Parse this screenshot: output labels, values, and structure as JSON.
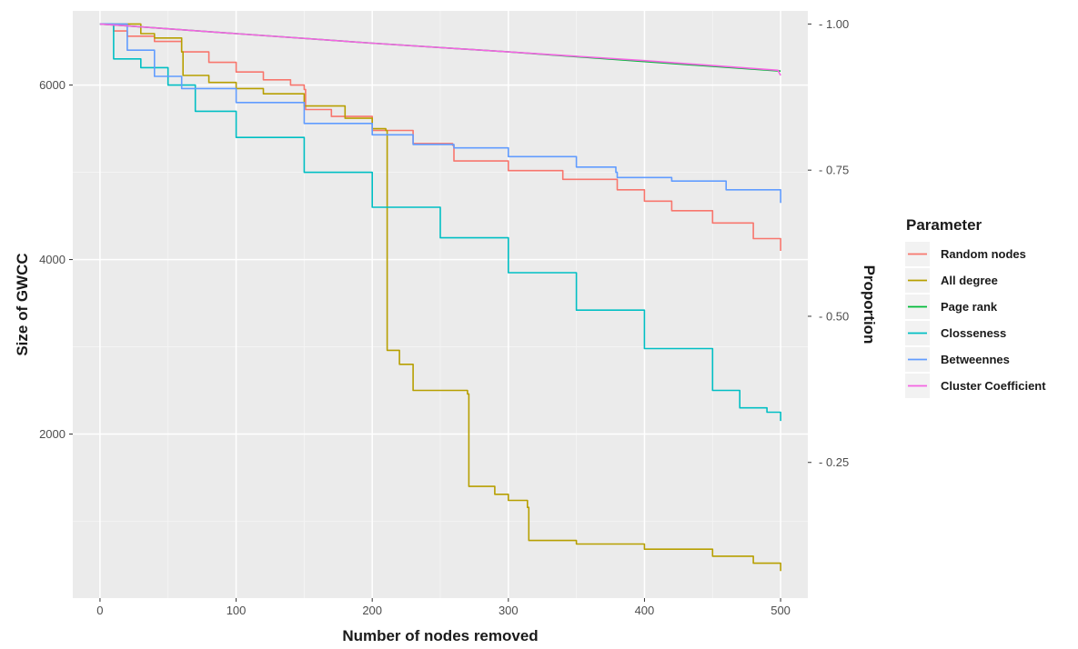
{
  "chart_data": {
    "type": "line",
    "xlabel": "Number of nodes removed",
    "ylabel": "Size of GWCC",
    "y2label": "Proportion",
    "xlim": [
      -20,
      520
    ],
    "ylim": [
      120,
      6850
    ],
    "y2_proportion_max": 6700,
    "x_ticks": [
      0,
      100,
      200,
      300,
      400,
      500
    ],
    "y_ticks": [
      2000,
      4000,
      6000
    ],
    "y2_ticks": [
      0.25,
      0.5,
      0.75,
      1.0
    ],
    "y2_tick_labels": [
      "0.25",
      "0.50",
      "0.75",
      "1.00"
    ],
    "grid": true,
    "legend": {
      "title": "Parameter",
      "position": "right"
    },
    "series": [
      {
        "name": "Random nodes",
        "color": "#F8766D",
        "step": true,
        "points": [
          [
            0,
            6700
          ],
          [
            10,
            6620
          ],
          [
            20,
            6560
          ],
          [
            40,
            6500
          ],
          [
            60,
            6380
          ],
          [
            80,
            6260
          ],
          [
            100,
            6150
          ],
          [
            120,
            6060
          ],
          [
            140,
            6000
          ],
          [
            150,
            5950
          ],
          [
            151,
            5720
          ],
          [
            170,
            5640
          ],
          [
            200,
            5480
          ],
          [
            230,
            5330
          ],
          [
            259,
            5310
          ],
          [
            260,
            5130
          ],
          [
            300,
            5020
          ],
          [
            340,
            4920
          ],
          [
            380,
            4800
          ],
          [
            400,
            4670
          ],
          [
            420,
            4560
          ],
          [
            450,
            4420
          ],
          [
            480,
            4240
          ],
          [
            500,
            4100
          ]
        ]
      },
      {
        "name": "All degree",
        "color": "#B79F00",
        "step": true,
        "points": [
          [
            0,
            6700
          ],
          [
            30,
            6590
          ],
          [
            40,
            6540
          ],
          [
            60,
            6380
          ],
          [
            61,
            6110
          ],
          [
            80,
            6030
          ],
          [
            100,
            5960
          ],
          [
            120,
            5900
          ],
          [
            150,
            5760
          ],
          [
            180,
            5620
          ],
          [
            200,
            5500
          ],
          [
            210,
            5480
          ],
          [
            211,
            2960
          ],
          [
            220,
            2800
          ],
          [
            230,
            2500
          ],
          [
            270,
            2460
          ],
          [
            271,
            1400
          ],
          [
            290,
            1310
          ],
          [
            300,
            1240
          ],
          [
            314,
            1160
          ],
          [
            315,
            780
          ],
          [
            350,
            740
          ],
          [
            400,
            680
          ],
          [
            450,
            600
          ],
          [
            480,
            520
          ],
          [
            500,
            430
          ]
        ]
      },
      {
        "name": "Page rank",
        "color": "#00BA38",
        "step": false,
        "points": [
          [
            0,
            6700
          ],
          [
            100,
            6590
          ],
          [
            200,
            6480
          ],
          [
            300,
            6380
          ],
          [
            400,
            6270
          ],
          [
            500,
            6160
          ]
        ]
      },
      {
        "name": "Closseness",
        "color": "#00BFC4",
        "step": true,
        "points": [
          [
            0,
            6700
          ],
          [
            10,
            6300
          ],
          [
            30,
            6200
          ],
          [
            50,
            6000
          ],
          [
            70,
            5700
          ],
          [
            100,
            5400
          ],
          [
            150,
            5000
          ],
          [
            200,
            4600
          ],
          [
            250,
            4250
          ],
          [
            300,
            3850
          ],
          [
            350,
            3420
          ],
          [
            400,
            2980
          ],
          [
            450,
            2500
          ],
          [
            470,
            2300
          ],
          [
            490,
            2250
          ],
          [
            500,
            2150
          ]
        ]
      },
      {
        "name": "Betweennes",
        "color": "#619CFF",
        "step": true,
        "points": [
          [
            0,
            6700
          ],
          [
            20,
            6400
          ],
          [
            40,
            6100
          ],
          [
            60,
            5960
          ],
          [
            100,
            5800
          ],
          [
            150,
            5560
          ],
          [
            200,
            5430
          ],
          [
            230,
            5320
          ],
          [
            260,
            5280
          ],
          [
            300,
            5180
          ],
          [
            350,
            5060
          ],
          [
            379,
            5000
          ],
          [
            380,
            4940
          ],
          [
            420,
            4900
          ],
          [
            460,
            4800
          ],
          [
            500,
            4650
          ]
        ]
      },
      {
        "name": "Cluster Coefficient",
        "color": "#F564E3",
        "step": false,
        "points": [
          [
            0,
            6700
          ],
          [
            100,
            6590
          ],
          [
            200,
            6480
          ],
          [
            300,
            6380
          ],
          [
            400,
            6280
          ],
          [
            498,
            6170
          ],
          [
            500,
            6110
          ]
        ]
      }
    ]
  }
}
